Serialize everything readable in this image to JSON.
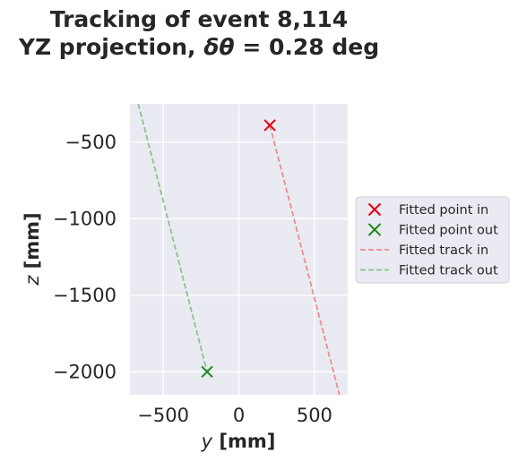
{
  "chart_data": {
    "type": "scatter",
    "title_line1": "Tracking of event 8,114",
    "title_line2_prefix": "YZ projection, ",
    "title_line2_symbol": "δθ",
    "title_line2_suffix": " = 0.28 deg",
    "xlabel_var": "y",
    "xlabel_unit": " [mm]",
    "ylabel_var": "z",
    "ylabel_unit": " [mm]",
    "xlim": [
      -720,
      720
    ],
    "ylim": [
      -2150,
      -250
    ],
    "xticks": [
      -500,
      0,
      500
    ],
    "xtick_labels": [
      "−500",
      "0",
      "500"
    ],
    "yticks": [
      -500,
      -1000,
      -1500,
      -2000
    ],
    "ytick_labels": [
      "−500",
      "−1000",
      "−1500",
      "−2000"
    ],
    "grid": true,
    "legend_position": "outside-right",
    "series": [
      {
        "name": "Fitted point in",
        "kind": "marker",
        "color": "#e8000b",
        "points": [
          [
            205,
            -390
          ]
        ]
      },
      {
        "name": "Fitted point out",
        "kind": "marker",
        "color": "#1a8a1a",
        "points": [
          [
            -210,
            -2000
          ]
        ]
      },
      {
        "name": "Fitted track in",
        "kind": "dashed-line",
        "color": "#f08c8c",
        "points": [
          [
            205,
            -390
          ],
          [
            665,
            -2150
          ]
        ]
      },
      {
        "name": "Fitted track out",
        "kind": "dashed-line",
        "color": "#8cc48c",
        "points": [
          [
            -665,
            -250
          ],
          [
            -210,
            -2000
          ]
        ]
      }
    ],
    "colors": {
      "plot_background": "#eaeaf2",
      "grid": "#ffffff",
      "text": "#262626"
    }
  }
}
